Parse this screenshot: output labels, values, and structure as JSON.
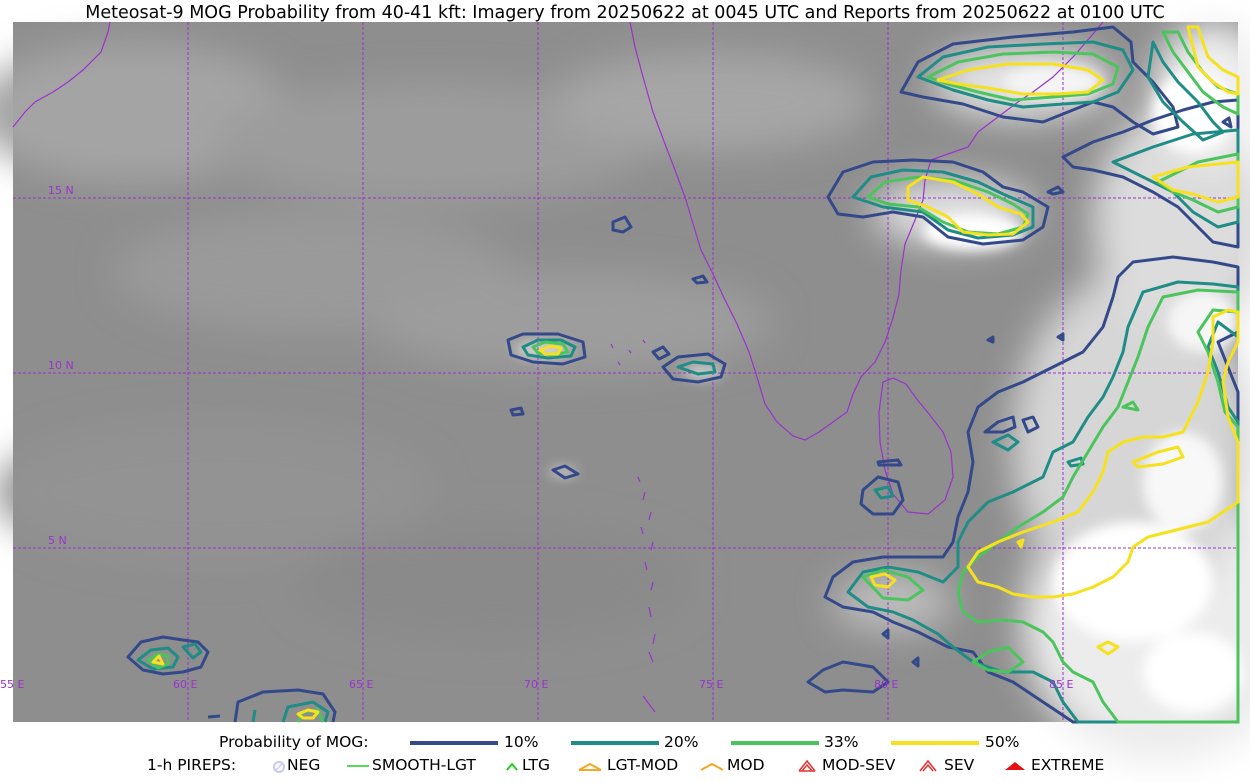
{
  "title": "Meteosat-9 MOG Probability from 40-41 kft: Imagery from 20250622 at 0045 UTC and Reports from 20250622 at 0100 UTC",
  "map": {
    "lon_labels": [
      "55 E",
      "60 E",
      "65 E",
      "70 E",
      "75 E",
      "80 E",
      "85 E"
    ],
    "lat_labels": [
      "15 N",
      "10 N",
      "5 N"
    ],
    "gridline_color": "#9933cc",
    "coastline_color": "#9933cc"
  },
  "legend": {
    "probability_label": "Probability of MOG:",
    "probability_levels": [
      {
        "label": "10%",
        "color": "#34498a"
      },
      {
        "label": "20%",
        "color": "#1f8c86"
      },
      {
        "label": "33%",
        "color": "#4cc45e"
      },
      {
        "label": "50%",
        "color": "#f5e11e"
      }
    ],
    "pireps_label": "1-h PIREPS:",
    "pireps": [
      {
        "label": "NEG",
        "color": "#c8c8ff",
        "icon": "neg-circle-icon"
      },
      {
        "label": "SMOOTH-LGT",
        "color": "#22cc22",
        "icon": "smooth-lgt-line-icon"
      },
      {
        "label": "LTG",
        "color": "#22cc22",
        "icon": "ltg-chevron-icon"
      },
      {
        "label": "LGT-MOD",
        "color": "#f5a623",
        "icon": "lgt-mod-chevron-icon"
      },
      {
        "label": "MOD",
        "color": "#f5a623",
        "icon": "mod-chevron-icon"
      },
      {
        "label": "MOD-SEV",
        "color": "#e83030",
        "icon": "mod-sev-chevron-icon"
      },
      {
        "label": "SEV",
        "color": "#e83030",
        "icon": "sev-chevron-icon"
      },
      {
        "label": "EXTREME",
        "color": "#e81010",
        "icon": "extreme-chevron-icon"
      }
    ]
  }
}
